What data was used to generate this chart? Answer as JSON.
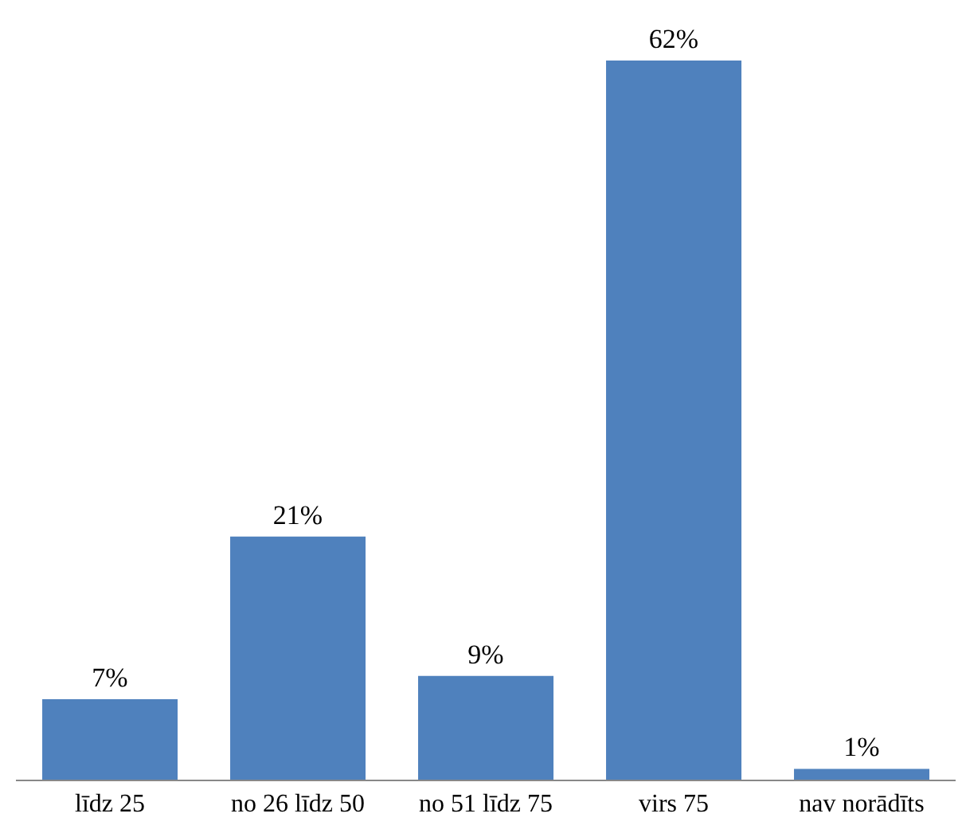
{
  "chart_data": {
    "type": "bar",
    "categories": [
      "līdz 25",
      "no 26 līdz 50",
      "no 51 līdz 75",
      "virs 75",
      "nav norādīts"
    ],
    "values": [
      7,
      21,
      9,
      62,
      1
    ],
    "value_labels": [
      "7%",
      "21%",
      "9%",
      "62%",
      "1%"
    ],
    "color": "#4f81bd",
    "tick_labels": "x"
  }
}
